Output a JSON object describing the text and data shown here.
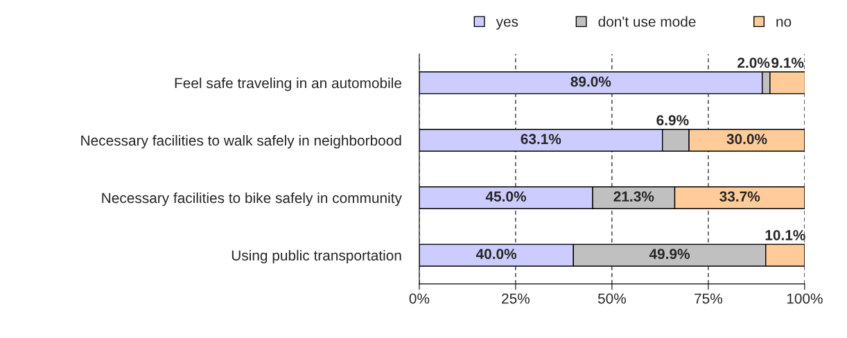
{
  "chart_data": {
    "type": "bar",
    "orientation": "horizontal",
    "stacked": true,
    "categories": [
      "Feel safe traveling in an automobile",
      "Necessary facilities to walk safely in neighborbood",
      "Necessary facilities to bike safely in community",
      "Using public transportation"
    ],
    "series": [
      {
        "name": "yes",
        "color": "#ccccff",
        "values": [
          89.0,
          63.1,
          45.0,
          40.0
        ],
        "value_labels": [
          "89.0%",
          "63.1%",
          "45.0%",
          "40.0%"
        ]
      },
      {
        "name": "don't use mode",
        "color": "#c0c0c0",
        "values": [
          2.0,
          6.9,
          21.3,
          49.9
        ],
        "value_labels": [
          "2.0%",
          "6.9%",
          "21.3%",
          "49.9%"
        ]
      },
      {
        "name": "no",
        "color": "#ffcc99",
        "values": [
          9.1,
          30.0,
          33.7,
          10.1
        ],
        "value_labels": [
          "9.1%",
          "30.0%",
          "33.7%",
          "10.1%"
        ]
      }
    ],
    "xlim": [
      0,
      100
    ],
    "xticks": [
      {
        "value": 0,
        "label": "0%"
      },
      {
        "value": 25,
        "label": "25%"
      },
      {
        "value": 50,
        "label": "50%"
      },
      {
        "value": 75,
        "label": "75%"
      },
      {
        "value": 100,
        "label": "100%"
      }
    ],
    "grid": "x",
    "legend": "top right"
  }
}
